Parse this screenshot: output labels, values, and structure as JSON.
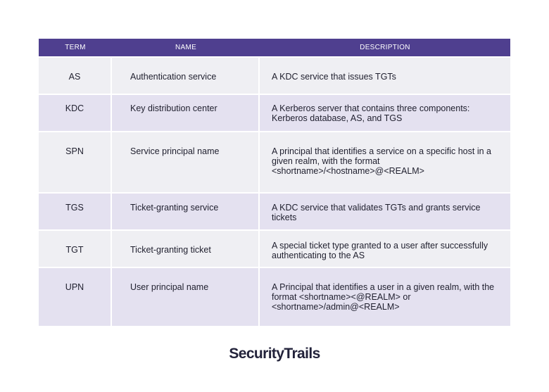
{
  "table": {
    "headers": [
      "TERM",
      "NAME",
      "DESCRIPTION"
    ],
    "rows": [
      {
        "term": "AS",
        "name": "Authentication service",
        "description": "A KDC service that issues TGTs"
      },
      {
        "term": "KDC",
        "name": "Key distribution center",
        "description": "A Kerberos server that contains three components: Kerberos database, AS, and TGS"
      },
      {
        "term": "SPN",
        "name": "Service principal name",
        "description": "A principal that identifies a service on a specific host in a given realm, with the format <shortname>/<hostname>@<REALM>"
      },
      {
        "term": "TGS",
        "name": "Ticket-granting service",
        "description": "A KDC service that validates TGTs and grants service tickets"
      },
      {
        "term": "TGT",
        "name": "Ticket-granting ticket",
        "description": "A special ticket type granted to a user after successfully authenticating to the AS"
      },
      {
        "term": "UPN",
        "name": "User principal name",
        "description": "A Principal that identifies a user in a given realm, with the format <shortname><@REALM> or <shortname>/admin@<REALM>"
      }
    ]
  },
  "brand": {
    "logo_text": "SecurityTrails"
  }
}
